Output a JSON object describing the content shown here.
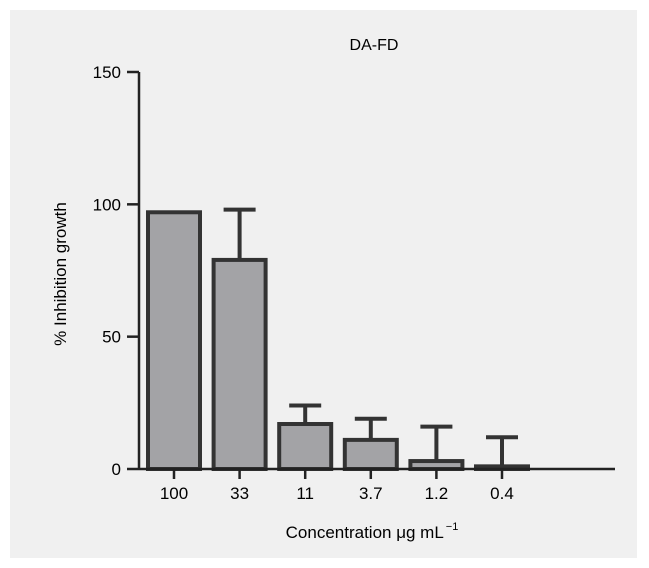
{
  "chart_data": {
    "type": "bar",
    "title": "DA-FD",
    "xlabel": "Concentration μg mL",
    "xlabel_superscript": "−1",
    "ylabel": "% Inhibition growth",
    "categories": [
      "100",
      "33",
      "11",
      "3.7",
      "1.2",
      "0.4"
    ],
    "values": [
      97,
      79,
      17,
      11,
      3,
      1
    ],
    "error_upper": [
      97,
      98,
      24,
      19,
      16,
      12
    ],
    "ylim": [
      0,
      150
    ],
    "yticks": [
      "0",
      "50",
      "100",
      "150"
    ],
    "grid": false,
    "legend": "none",
    "colors": {
      "bar_fill": "#a3a3a6",
      "bar_stroke": "#333333",
      "background": "#f0f0f0"
    }
  }
}
